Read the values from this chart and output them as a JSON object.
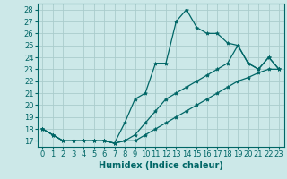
{
  "xlabel": "Humidex (Indice chaleur)",
  "ylabel": "",
  "bg_color": "#cce8e8",
  "grid_color": "#aacccc",
  "line_color": "#006666",
  "xlim": [
    -0.5,
    23.5
  ],
  "ylim": [
    16.5,
    28.5
  ],
  "yticks": [
    17,
    18,
    19,
    20,
    21,
    22,
    23,
    24,
    25,
    26,
    27,
    28
  ],
  "xticks": [
    0,
    1,
    2,
    3,
    4,
    5,
    6,
    7,
    8,
    9,
    10,
    11,
    12,
    13,
    14,
    15,
    16,
    17,
    18,
    19,
    20,
    21,
    22,
    23
  ],
  "line1_x": [
    0,
    1,
    2,
    3,
    4,
    5,
    6,
    7,
    8,
    9,
    10,
    11,
    12,
    13,
    14,
    15,
    16,
    17,
    18,
    19,
    20,
    21,
    22,
    23
  ],
  "line1_y": [
    18.0,
    17.5,
    17.0,
    17.0,
    17.0,
    17.0,
    17.0,
    16.8,
    17.0,
    17.0,
    17.5,
    18.0,
    18.5,
    19.0,
    19.5,
    20.0,
    20.5,
    21.0,
    21.5,
    22.0,
    22.3,
    22.7,
    23.0,
    23.0
  ],
  "line2_x": [
    0,
    1,
    2,
    3,
    4,
    5,
    6,
    7,
    8,
    9,
    10,
    11,
    12,
    13,
    14,
    15,
    16,
    17,
    18,
    19,
    20,
    21,
    22,
    23
  ],
  "line2_y": [
    18.0,
    17.5,
    17.0,
    17.0,
    17.0,
    17.0,
    17.0,
    16.8,
    18.5,
    20.5,
    21.0,
    23.5,
    23.5,
    27.0,
    28.0,
    26.5,
    26.0,
    26.0,
    25.2,
    25.0,
    23.5,
    23.0,
    24.0,
    23.0
  ],
  "line3_x": [
    0,
    1,
    2,
    3,
    4,
    5,
    6,
    7,
    8,
    9,
    10,
    11,
    12,
    13,
    14,
    15,
    16,
    17,
    18,
    19,
    20,
    21,
    22,
    23
  ],
  "line3_y": [
    18.0,
    17.5,
    17.0,
    17.0,
    17.0,
    17.0,
    17.0,
    16.8,
    17.0,
    17.5,
    18.5,
    19.5,
    20.5,
    21.0,
    21.5,
    22.0,
    22.5,
    23.0,
    23.5,
    25.0,
    23.5,
    23.0,
    24.0,
    23.0
  ],
  "marker": "*",
  "markersize": 3,
  "linewidth": 0.9,
  "fontsize_label": 7,
  "fontsize_tick": 6
}
